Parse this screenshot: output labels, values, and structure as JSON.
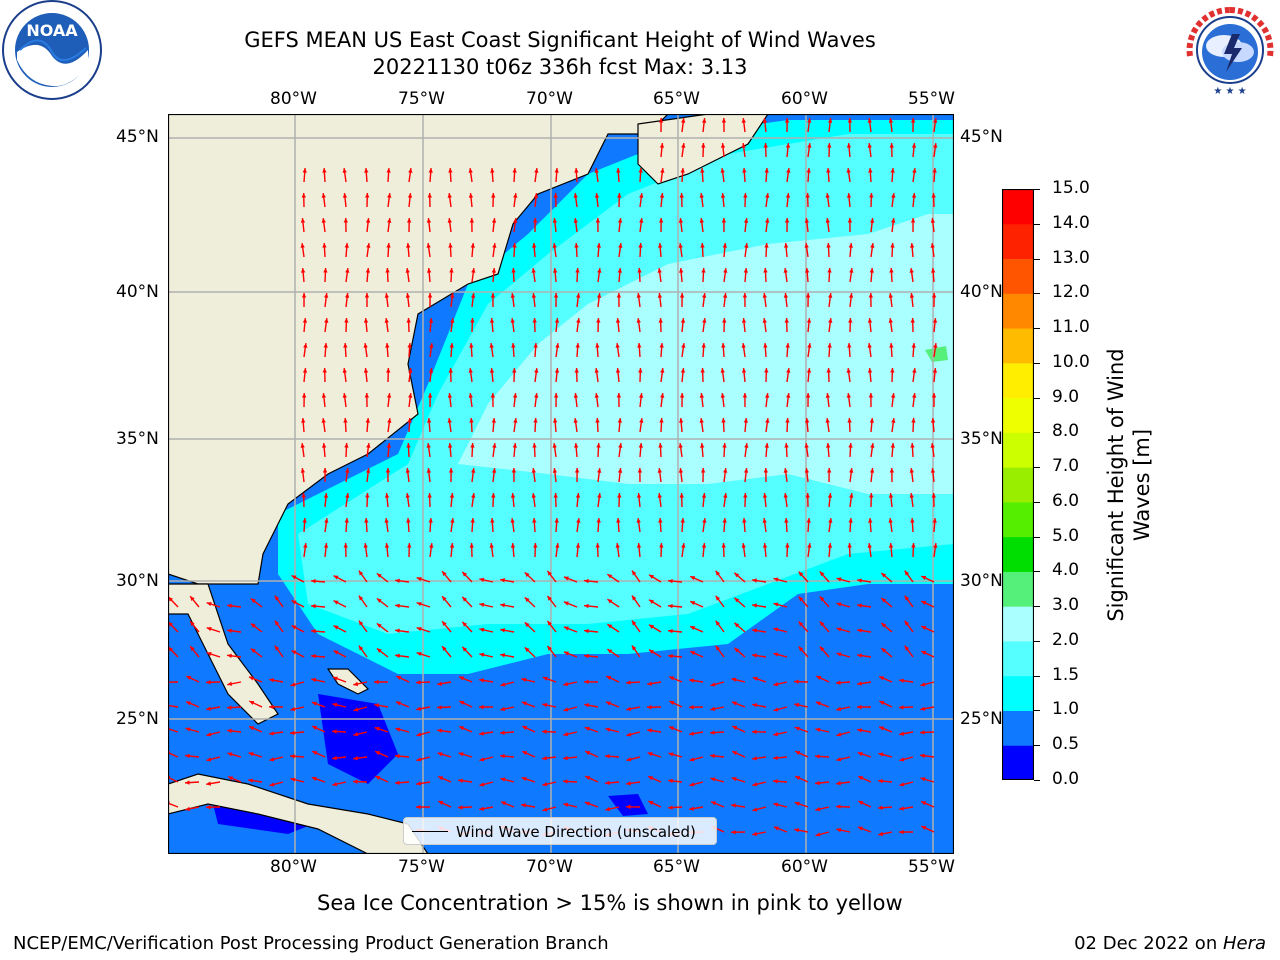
{
  "header": {
    "title_line1": "GEFS MEAN US East Coast Significant Height of Wind Waves",
    "title_line2": "20221130 t06z 336h fcst   Max: 3.13"
  },
  "logos": {
    "left_name": "NOAA",
    "left_ring_text": "NATIONAL OCEANIC AND ATMOSPHERIC ADMINISTRATION · U.S. DEPARTMENT OF COMMERCE",
    "right_ring_text": "NATIONAL WEATHER SERVICE"
  },
  "map": {
    "lon_labels": [
      "80°W",
      "75°W",
      "70°W",
      "65°W",
      "60°W",
      "55°W"
    ],
    "lat_labels": [
      "45°N",
      "40°N",
      "35°N",
      "30°N",
      "25°N"
    ],
    "lon_values": [
      -80,
      -75,
      -70,
      -65,
      -60,
      -55
    ],
    "lat_values": [
      45,
      40,
      35,
      30,
      25
    ],
    "colors": {
      "land": "#efeedb",
      "deep_blue": "#0000ff",
      "mid_blue": "#0f7aff",
      "cyan": "#00ffff",
      "light_cyan": "#55ffff",
      "pale_cyan": "#aaffff",
      "green": "#55f07a",
      "arrow": "#ff0000",
      "grid": "#b0b0b0"
    },
    "legend_label": "Wind Wave Direction (unscaled)"
  },
  "colorbar": {
    "label": "Significant Height of Wind Waves [m]",
    "ticks": [
      "0.0",
      "0.5",
      "1.0",
      "1.5",
      "2.0",
      "3.0",
      "4.0",
      "5.0",
      "6.0",
      "7.0",
      "8.0",
      "9.0",
      "10.0",
      "11.0",
      "12.0",
      "13.0",
      "14.0",
      "15.0"
    ],
    "colors": [
      "#0000ff",
      "#0f7aff",
      "#00ffff",
      "#55ffff",
      "#aaffff",
      "#55f07a",
      "#00dd00",
      "#55ee00",
      "#99ee00",
      "#ccff00",
      "#eeff00",
      "#ffee00",
      "#ffbb00",
      "#ff8800",
      "#ff5500",
      "#ff2200",
      "#ff0000"
    ]
  },
  "footer": {
    "sea_ice_note": "Sea Ice Concentration > 15% is shown in pink to yellow",
    "branch": "NCEP/EMC/Verification Post Processing Product Generation Branch",
    "date": "02 Dec 2022 on ",
    "host": "Hera"
  }
}
